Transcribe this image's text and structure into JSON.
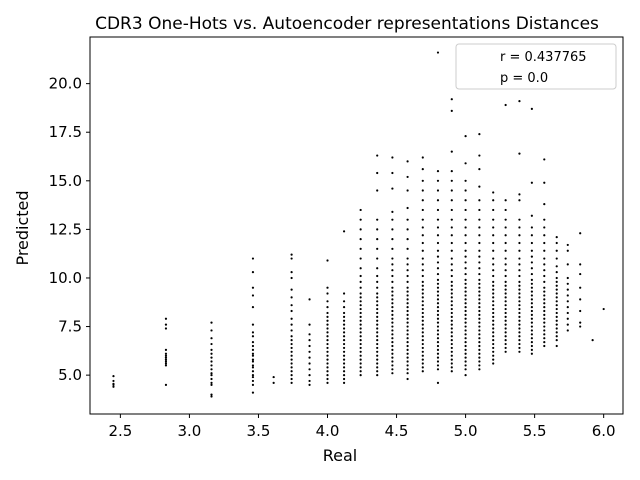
{
  "chart_data": {
    "type": "scatter",
    "title": "CDR3 One-Hots vs. Autoencoder representations Distances",
    "xlabel": "Real",
    "ylabel": "Predicted",
    "xlim": [
      2.28,
      6.14
    ],
    "ylim": [
      3.0,
      22.4
    ],
    "xticks": [
      "2.5",
      "3.0",
      "3.5",
      "4.0",
      "4.5",
      "5.0",
      "5.5",
      "6.0"
    ],
    "yticks": [
      "5.0",
      "7.5",
      "10.0",
      "12.5",
      "15.0",
      "17.5",
      "20.0"
    ],
    "legend": {
      "placement": "top-right",
      "entries": [
        "r = 0.437765",
        "p = 0.0"
      ]
    },
    "point_color": "#000000",
    "columns": [
      {
        "x": 2.45,
        "y": [
          4.4,
          4.5,
          4.55,
          4.7,
          4.95
        ]
      },
      {
        "x": 2.83,
        "y": [
          4.5,
          5.5,
          5.6,
          5.7,
          5.8,
          5.9,
          6.0,
          6.1,
          6.3,
          7.4,
          7.6,
          7.9
        ]
      },
      {
        "x": 3.16,
        "y": [
          3.9,
          4.0,
          4.5,
          4.6,
          4.8,
          5.0,
          5.1,
          5.3,
          5.5,
          5.7,
          5.9,
          6.1,
          6.3,
          6.6,
          6.9,
          7.3,
          7.7
        ]
      },
      {
        "x": 3.46,
        "y": [
          4.1,
          4.5,
          4.7,
          4.9,
          5.0,
          5.2,
          5.4,
          5.5,
          5.7,
          5.8,
          6.0,
          6.1,
          6.3,
          6.5,
          6.7,
          7.0,
          7.2,
          7.6,
          8.5,
          9.1,
          9.5,
          10.3,
          11.0
        ]
      },
      {
        "x": 3.61,
        "y": [
          4.6,
          4.9
        ]
      },
      {
        "x": 3.74,
        "y": [
          4.6,
          4.8,
          5.0,
          5.2,
          5.4,
          5.6,
          5.8,
          6.0,
          6.2,
          6.4,
          6.6,
          6.8,
          7.0,
          7.3,
          7.6,
          7.9,
          8.3,
          8.6,
          9.0,
          9.4,
          10.0,
          10.3,
          11.0,
          11.2
        ]
      },
      {
        "x": 3.87,
        "y": [
          4.5,
          4.7,
          5.0,
          5.3,
          5.6,
          5.9,
          6.2,
          6.5,
          6.8,
          7.1,
          7.6,
          8.9
        ]
      },
      {
        "x": 4.0,
        "y": [
          4.6,
          4.8,
          5.0,
          5.2,
          5.4,
          5.6,
          5.8,
          6.0,
          6.2,
          6.4,
          6.6,
          6.8,
          7.0,
          7.2,
          7.4,
          7.6,
          7.8,
          8.0,
          8.2,
          8.5,
          8.8,
          9.2,
          9.5,
          10.9
        ]
      },
      {
        "x": 4.12,
        "y": [
          4.6,
          4.8,
          5.0,
          5.2,
          5.4,
          5.6,
          5.8,
          6.0,
          6.2,
          6.4,
          6.6,
          6.8,
          7.0,
          7.2,
          7.4,
          7.6,
          7.8,
          8.0,
          8.2,
          8.5,
          8.8,
          9.2,
          12.4
        ]
      },
      {
        "x": 4.24,
        "y": [
          5.0,
          5.2,
          5.4,
          5.6,
          5.8,
          6.0,
          6.2,
          6.4,
          6.6,
          6.8,
          7.0,
          7.2,
          7.4,
          7.6,
          7.8,
          8.0,
          8.2,
          8.4,
          8.6,
          8.8,
          9.0,
          9.2,
          9.5,
          9.8,
          10.1,
          10.5,
          11.0,
          11.5,
          12.0,
          12.5,
          13.0,
          13.5
        ]
      },
      {
        "x": 4.36,
        "y": [
          5.0,
          5.2,
          5.4,
          5.6,
          5.8,
          6.0,
          6.2,
          6.4,
          6.6,
          6.8,
          7.0,
          7.2,
          7.4,
          7.6,
          7.8,
          8.0,
          8.2,
          8.4,
          8.6,
          8.8,
          9.0,
          9.2,
          9.5,
          9.8,
          10.1,
          10.5,
          11.0,
          11.5,
          12.0,
          12.5,
          13.0,
          14.5,
          15.4,
          16.3
        ]
      },
      {
        "x": 4.47,
        "y": [
          5.1,
          5.3,
          5.5,
          5.7,
          5.9,
          6.1,
          6.3,
          6.5,
          6.7,
          6.9,
          7.1,
          7.3,
          7.5,
          7.7,
          7.9,
          8.1,
          8.3,
          8.5,
          8.7,
          8.9,
          9.1,
          9.3,
          9.5,
          9.8,
          10.1,
          10.4,
          10.7,
          11.0,
          11.5,
          12.0,
          12.5,
          13.0,
          13.4,
          14.6,
          15.4,
          16.2
        ]
      },
      {
        "x": 4.58,
        "y": [
          4.8,
          5.1,
          5.3,
          5.5,
          5.7,
          5.9,
          6.1,
          6.3,
          6.5,
          6.7,
          6.9,
          7.1,
          7.3,
          7.5,
          7.7,
          7.9,
          8.1,
          8.3,
          8.5,
          8.7,
          8.9,
          9.1,
          9.3,
          9.5,
          9.8,
          10.1,
          10.4,
          10.7,
          11.0,
          11.5,
          12.0,
          12.5,
          13.0,
          13.6,
          14.5,
          15.2,
          16.0
        ]
      },
      {
        "x": 4.69,
        "y": [
          5.2,
          5.4,
          5.6,
          5.8,
          6.0,
          6.2,
          6.4,
          6.6,
          6.8,
          7.0,
          7.2,
          7.4,
          7.6,
          7.8,
          8.0,
          8.2,
          8.4,
          8.6,
          8.8,
          9.0,
          9.2,
          9.4,
          9.6,
          9.8,
          10.1,
          10.4,
          10.7,
          11.0,
          11.4,
          11.8,
          12.2,
          12.6,
          13.0,
          13.5,
          14.0,
          14.5,
          15.0,
          15.6,
          16.2
        ]
      },
      {
        "x": 4.8,
        "y": [
          4.6,
          5.3,
          5.5,
          5.7,
          5.9,
          6.1,
          6.3,
          6.5,
          6.7,
          6.9,
          7.1,
          7.3,
          7.5,
          7.7,
          7.9,
          8.1,
          8.3,
          8.5,
          8.7,
          8.9,
          9.1,
          9.3,
          9.5,
          9.7,
          9.9,
          10.2,
          10.5,
          10.8,
          11.1,
          11.4,
          11.8,
          12.2,
          12.6,
          13.0,
          13.5,
          14.0,
          14.5,
          15.0,
          15.5,
          21.6
        ]
      },
      {
        "x": 4.9,
        "y": [
          5.2,
          5.4,
          5.6,
          5.8,
          6.0,
          6.2,
          6.4,
          6.6,
          6.8,
          7.0,
          7.2,
          7.4,
          7.6,
          7.8,
          8.0,
          8.2,
          8.4,
          8.6,
          8.8,
          9.0,
          9.2,
          9.4,
          9.6,
          9.8,
          10.1,
          10.4,
          10.7,
          11.0,
          11.4,
          11.8,
          12.2,
          12.6,
          13.0,
          13.5,
          14.0,
          14.5,
          15.0,
          15.5,
          16.5,
          18.6,
          19.2
        ]
      },
      {
        "x": 5.0,
        "y": [
          5.0,
          5.3,
          5.5,
          5.7,
          5.9,
          6.1,
          6.3,
          6.5,
          6.7,
          6.9,
          7.1,
          7.3,
          7.5,
          7.7,
          7.9,
          8.1,
          8.3,
          8.5,
          8.7,
          8.9,
          9.1,
          9.3,
          9.5,
          9.7,
          9.9,
          10.2,
          10.5,
          10.8,
          11.1,
          11.4,
          11.8,
          12.2,
          12.6,
          13.0,
          13.5,
          14.0,
          14.5,
          15.0,
          15.9,
          17.3
        ]
      },
      {
        "x": 5.1,
        "y": [
          5.3,
          5.5,
          5.7,
          5.9,
          6.1,
          6.3,
          6.5,
          6.7,
          6.9,
          7.1,
          7.3,
          7.5,
          7.7,
          7.9,
          8.1,
          8.3,
          8.5,
          8.7,
          8.9,
          9.1,
          9.3,
          9.5,
          9.7,
          9.9,
          10.2,
          10.5,
          10.8,
          11.1,
          11.4,
          11.8,
          12.2,
          12.6,
          13.0,
          13.5,
          14.0,
          14.7,
          15.6,
          16.3,
          17.4
        ]
      },
      {
        "x": 5.2,
        "y": [
          5.6,
          5.8,
          6.0,
          6.2,
          6.4,
          6.6,
          6.8,
          7.0,
          7.2,
          7.4,
          7.6,
          7.8,
          8.0,
          8.2,
          8.4,
          8.6,
          8.8,
          9.0,
          9.2,
          9.4,
          9.6,
          9.8,
          10.1,
          10.4,
          10.7,
          11.0,
          11.4,
          11.8,
          12.2,
          12.6,
          13.0,
          13.5,
          14.0,
          14.4
        ]
      },
      {
        "x": 5.29,
        "y": [
          6.2,
          6.4,
          6.6,
          6.8,
          7.0,
          7.2,
          7.4,
          7.6,
          7.8,
          8.0,
          8.2,
          8.4,
          8.6,
          8.8,
          9.0,
          9.2,
          9.4,
          9.6,
          9.8,
          10.1,
          10.4,
          10.7,
          11.0,
          11.4,
          11.8,
          12.2,
          12.6,
          13.0,
          13.5,
          14.0,
          18.9
        ]
      },
      {
        "x": 5.39,
        "y": [
          6.2,
          6.4,
          6.6,
          6.8,
          7.0,
          7.2,
          7.4,
          7.6,
          7.8,
          8.0,
          8.2,
          8.4,
          8.6,
          8.8,
          9.0,
          9.2,
          9.4,
          9.6,
          9.8,
          10.1,
          10.4,
          10.7,
          11.0,
          11.4,
          11.8,
          12.2,
          12.6,
          13.0,
          14.0,
          14.3,
          16.4,
          19.1
        ]
      },
      {
        "x": 5.48,
        "y": [
          6.1,
          6.3,
          6.5,
          6.7,
          6.9,
          7.1,
          7.3,
          7.5,
          7.7,
          7.9,
          8.1,
          8.3,
          8.5,
          8.7,
          8.9,
          9.1,
          9.3,
          9.5,
          9.7,
          9.9,
          10.2,
          10.5,
          10.8,
          11.1,
          11.4,
          11.8,
          12.2,
          12.6,
          13.2,
          14.9,
          18.7
        ]
      },
      {
        "x": 5.57,
        "y": [
          6.5,
          6.7,
          6.9,
          7.1,
          7.3,
          7.5,
          7.7,
          7.9,
          8.1,
          8.3,
          8.5,
          8.7,
          8.9,
          9.1,
          9.3,
          9.5,
          9.8,
          10.1,
          10.4,
          10.7,
          11.0,
          11.4,
          11.8,
          12.2,
          12.6,
          13.0,
          13.8,
          14.9,
          16.1
        ]
      },
      {
        "x": 5.66,
        "y": [
          6.5,
          6.8,
          7.0,
          7.2,
          7.4,
          7.6,
          7.8,
          8.0,
          8.2,
          8.4,
          8.6,
          8.8,
          9.0,
          9.2,
          9.4,
          9.6,
          9.8,
          10.0,
          10.3,
          10.6,
          11.0,
          11.4,
          11.8,
          12.1
        ]
      },
      {
        "x": 5.74,
        "y": [
          7.3,
          7.6,
          7.9,
          8.2,
          8.5,
          8.8,
          9.1,
          9.4,
          9.7,
          10.0,
          10.7,
          11.4,
          11.7
        ]
      },
      {
        "x": 5.83,
        "y": [
          7.5,
          7.7,
          8.3,
          8.9,
          9.5,
          10.2,
          10.7,
          12.3
        ]
      },
      {
        "x": 5.92,
        "y": [
          6.8
        ]
      },
      {
        "x": 6.0,
        "y": [
          8.4
        ]
      }
    ]
  }
}
